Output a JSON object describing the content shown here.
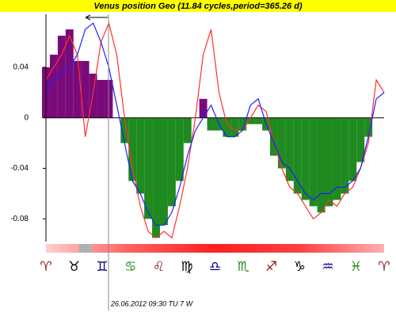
{
  "chart_data": {
    "type": "line",
    "title": "Venus position Geo  (11.84 cycles,period=365.26 d)",
    "ylim": [
      -0.098,
      0.082
    ],
    "yticks": [
      0.04,
      0,
      -0.04,
      -0.08
    ],
    "area": {
      "positive_color": "#7a0a7a",
      "negative_color": "#1f8a1f",
      "values": [
        0.04,
        0.05,
        0.065,
        0.07,
        0.045,
        0.045,
        0.035,
        0.03,
        0.03,
        0.0,
        -0.02,
        -0.05,
        -0.06,
        -0.08,
        -0.095,
        -0.085,
        -0.07,
        -0.05,
        -0.02,
        0.0,
        0.015,
        -0.01,
        -0.01,
        -0.015,
        -0.015,
        -0.01,
        -0.005,
        -0.005,
        -0.01,
        -0.03,
        -0.04,
        -0.05,
        -0.06,
        -0.065,
        -0.07,
        -0.075,
        -0.07,
        -0.065,
        -0.06,
        -0.05,
        -0.035,
        -0.015,
        0.0,
        0.0
      ]
    },
    "series": [
      {
        "color": "#ff3030",
        "values": [
          0.03,
          0.04,
          0.05,
          0.065,
          0.05,
          -0.015,
          0.02,
          0.06,
          0.075,
          0.05,
          0.0,
          -0.04,
          -0.07,
          -0.09,
          -0.095,
          -0.09,
          -0.095,
          -0.07,
          -0.04,
          0.0,
          0.05,
          0.07,
          0.02,
          -0.005,
          -0.01,
          -0.01,
          0.0,
          0.01,
          0.005,
          -0.02,
          -0.04,
          -0.055,
          -0.06,
          -0.07,
          -0.08,
          -0.075,
          -0.065,
          -0.07,
          -0.06,
          -0.055,
          -0.04,
          -0.02,
          0.03,
          0.02
        ]
      },
      {
        "color": "#2020ff",
        "values": [
          0.02,
          0.03,
          0.035,
          0.04,
          0.05,
          0.07,
          0.075,
          0.06,
          0.04,
          0.01,
          -0.02,
          -0.05,
          -0.06,
          -0.075,
          -0.085,
          -0.085,
          -0.075,
          -0.055,
          -0.03,
          -0.01,
          0.0,
          0.01,
          -0.005,
          -0.015,
          -0.015,
          -0.01,
          0.01,
          0.015,
          -0.005,
          -0.02,
          -0.035,
          -0.04,
          -0.05,
          -0.06,
          -0.065,
          -0.06,
          -0.06,
          -0.055,
          -0.055,
          -0.05,
          -0.04,
          -0.015,
          0.015,
          0.02
        ]
      }
    ],
    "zodiac_signs": [
      "♈",
      "♉",
      "♊",
      "♋",
      "♌",
      "♍",
      "♎",
      "♏",
      "♐",
      "♑",
      "♒",
      "♓",
      "♈"
    ],
    "zodiac_colors": [
      "#8b1a1a",
      "#000000",
      "#000080",
      "#1f8a1f",
      "#8b1a1a",
      "#000000",
      "#000080",
      "#1f8a1f",
      "#8b1a1a",
      "#000000",
      "#000080",
      "#1f8a1f",
      "#8b1a1a"
    ],
    "footer": "26.06.2012  09:30 TU  7 W"
  }
}
